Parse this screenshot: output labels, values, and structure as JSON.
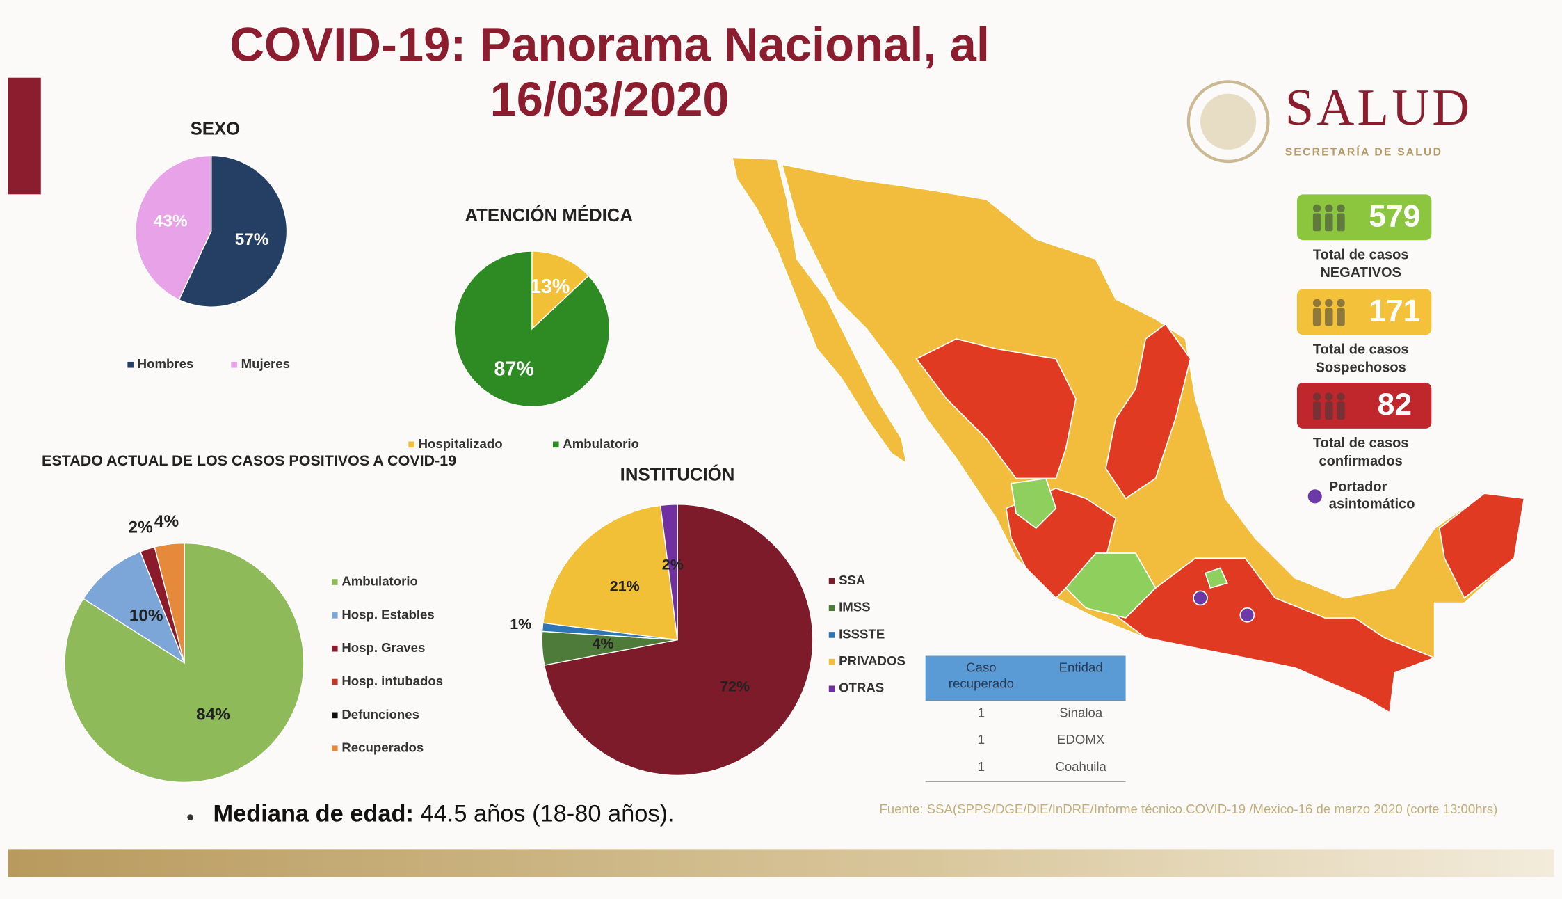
{
  "title": "COVID-19: Panorama Nacional, al 16/03/2020",
  "logo": {
    "name": "SALUD",
    "subtitle": "SECRETARÍA DE SALUD"
  },
  "chart_data": [
    {
      "type": "pie",
      "title": "SEXO",
      "categories": [
        "Hombres",
        "Mujeres"
      ],
      "values": [
        57,
        43
      ],
      "value_labels": [
        "57%",
        "43%"
      ],
      "colors": [
        "#243f63",
        "#e8a3e8"
      ]
    },
    {
      "type": "pie",
      "title": "ATENCIÓN MÉDICA",
      "categories": [
        "Hospitalizado",
        "Ambulatorio"
      ],
      "values": [
        13,
        87
      ],
      "value_labels": [
        "13%",
        "87%"
      ],
      "colors": [
        "#f2c037",
        "#2e8a22"
      ]
    },
    {
      "type": "pie",
      "title": "ESTADO ACTUAL DE LOS CASOS POSITIVOS A COVID-19",
      "categories": [
        "Ambulatorio",
        "Hosp. Estables",
        "Hosp. Graves",
        "Hosp. intubados",
        "Defunciones",
        "Recuperados"
      ],
      "values": [
        84,
        10,
        2,
        0,
        0,
        4
      ],
      "value_labels": [
        "84%",
        "10%",
        "2%",
        null,
        null,
        "4%"
      ],
      "colors": [
        "#8fba5a",
        "#7ca6d8",
        "#8b1a2b",
        "#c0392b",
        "#111111",
        "#e58a3a"
      ]
    },
    {
      "type": "pie",
      "title": "INSTITUCIÓN",
      "categories": [
        "SSA",
        "IMSS",
        "ISSSTE",
        "PRIVADOS",
        "OTRAS"
      ],
      "values": [
        72,
        4,
        1,
        21,
        2
      ],
      "value_labels": [
        "72%",
        "4%",
        "1%",
        "21%",
        "2%"
      ],
      "colors": [
        "#7d1b2a",
        "#4e7a3a",
        "#2e75b6",
        "#f2c037",
        "#7030a0"
      ]
    }
  ],
  "stats": [
    {
      "value": 579,
      "label": "Total de casos NEGATIVOS",
      "color": "#8cc63f"
    },
    {
      "value": 171,
      "label": "Total de casos Sospechosos",
      "color": "#f3c13a"
    },
    {
      "value": 82,
      "label": "Total de casos confirmados",
      "color": "#c0272d"
    }
  ],
  "map_legend": "Portador asintomático",
  "table": {
    "header": [
      "Caso recuperado",
      "Entidad"
    ],
    "rows": [
      [
        1,
        "Sinaloa"
      ],
      [
        1,
        "EDOMX"
      ],
      [
        1,
        "Coahuila"
      ]
    ]
  },
  "median": {
    "label": "Mediana de edad:",
    "text": "44.5 años (18-80 años)."
  },
  "source": "Fuente: SSA(SPPS/DGE/DIE/InDRE/Informe técnico.COVID-19 /Mexico-16 de marzo 2020 (corte 13:00hrs)"
}
